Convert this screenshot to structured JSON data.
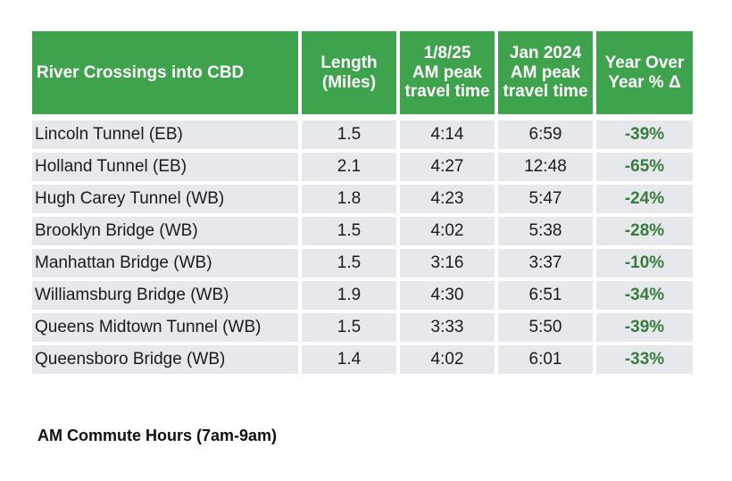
{
  "colors": {
    "header_bg": "#3FA24C",
    "header_text": "#FFFFFF",
    "row_bg": "#E6E8EB",
    "body_text": "#1B1B1B",
    "delta_text": "#377D3C"
  },
  "chart_data": {
    "type": "table",
    "title": "",
    "columns": [
      "River Crossings into CBD",
      "Length\n(Miles)",
      "1/8/25\nAM peak\ntravel time",
      "Jan 2024\nAM peak\ntravel time",
      "Year Over\nYear % Δ"
    ],
    "rows": [
      [
        "Lincoln Tunnel (EB)",
        "1.5",
        "4:14",
        "6:59",
        "-39%"
      ],
      [
        "Holland Tunnel (EB)",
        "2.1",
        "4:27",
        "12:48",
        "-65%"
      ],
      [
        "Hugh Carey Tunnel (WB)",
        "1.8",
        "4:23",
        "5:47",
        "-24%"
      ],
      [
        "Brooklyn Bridge (WB)",
        "1.5",
        "4:02",
        "5:38",
        "-28%"
      ],
      [
        "Manhattan Bridge (WB)",
        "1.5",
        "3:16",
        "3:37",
        "-10%"
      ],
      [
        "Williamsburg Bridge (WB)",
        "1.9",
        "4:30",
        "6:51",
        "-34%"
      ],
      [
        "Queens Midtown Tunnel (WB)",
        "1.5",
        "3:33",
        "5:50",
        "-39%"
      ],
      [
        "Queensboro Bridge (WB)",
        "1.4",
        "4:02",
        "6:01",
        "-33%"
      ]
    ],
    "footnote": "AM Commute Hours (7am-9am)"
  }
}
